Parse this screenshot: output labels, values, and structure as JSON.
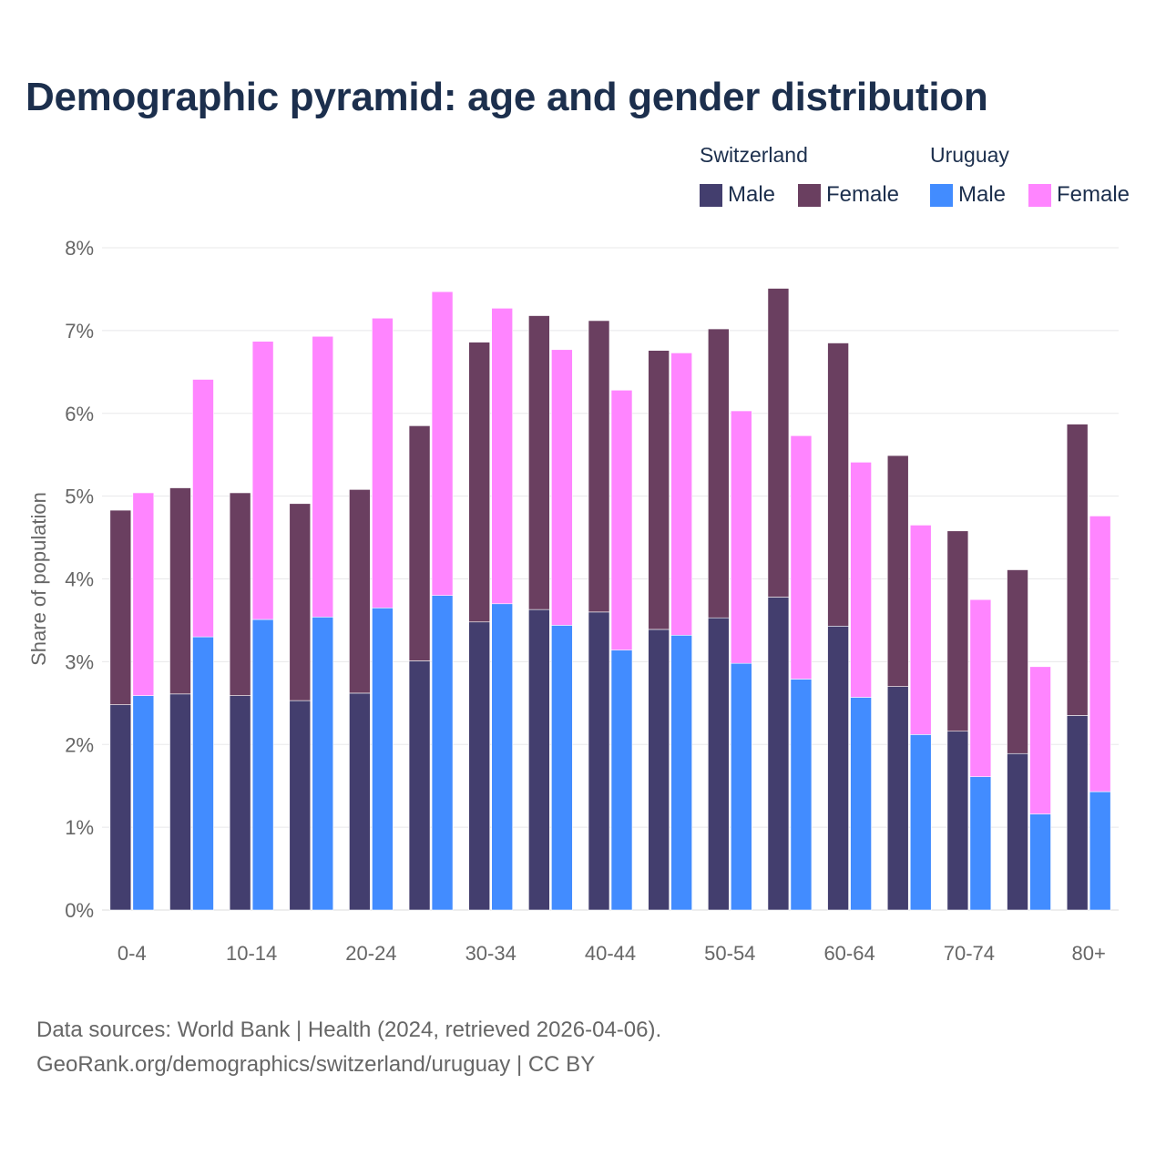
{
  "chart_data": {
    "type": "bar",
    "title": "Demographic pyramid: age and gender distribution",
    "xlabel": "",
    "ylabel": "Share of population",
    "ylim": [
      0,
      8
    ],
    "y_ticks": [
      "0%",
      "1%",
      "2%",
      "3%",
      "4%",
      "5%",
      "6%",
      "7%",
      "8%"
    ],
    "grid": true,
    "stacked": true,
    "categories": [
      "0-4",
      "5-9",
      "10-14",
      "15-19",
      "20-24",
      "25-29",
      "30-34",
      "35-39",
      "40-44",
      "45-49",
      "50-54",
      "55-59",
      "60-64",
      "65-69",
      "70-74",
      "75-79",
      "80+"
    ],
    "shown_tick_labels": [
      "0-4",
      "10-14",
      "20-24",
      "30-34",
      "40-44",
      "50-54",
      "60-64",
      "70-74",
      "80+"
    ],
    "legend_position": "top-right",
    "countries": [
      {
        "name": "Switzerland",
        "series": [
          {
            "name": "Male",
            "color": "#433e6e",
            "values": [
              2.48,
              2.61,
              2.59,
              2.53,
              2.62,
              3.01,
              3.48,
              3.63,
              3.6,
              3.39,
              3.53,
              3.78,
              3.43,
              2.7,
              2.16,
              1.89,
              2.35
            ]
          },
          {
            "name": "Female",
            "color": "#6a3f60",
            "values": [
              2.35,
              2.49,
              2.45,
              2.38,
              2.46,
              2.84,
              3.38,
              3.55,
              3.52,
              3.37,
              3.49,
              3.73,
              3.42,
              2.79,
              2.42,
              2.22,
              3.52
            ]
          }
        ]
      },
      {
        "name": "Uruguay",
        "series": [
          {
            "name": "Male",
            "color": "#428cff",
            "values": [
              2.59,
              3.3,
              3.51,
              3.54,
              3.65,
              3.8,
              3.7,
              3.44,
              3.14,
              3.32,
              2.98,
              2.79,
              2.57,
              2.12,
              1.61,
              1.16,
              1.43
            ]
          },
          {
            "name": "Female",
            "color": "#ff85ff",
            "values": [
              2.45,
              3.11,
              3.36,
              3.39,
              3.5,
              3.67,
              3.57,
              3.33,
              3.14,
              3.41,
              3.05,
              2.94,
              2.84,
              2.53,
              2.14,
              1.78,
              3.33
            ]
          }
        ]
      }
    ]
  },
  "footer": {
    "line1": "Data sources: World Bank | Health (2024, retrieved 2026-04-06).",
    "line2": "GeoRank.org/demographics/switzerland/uruguay | CC BY"
  }
}
